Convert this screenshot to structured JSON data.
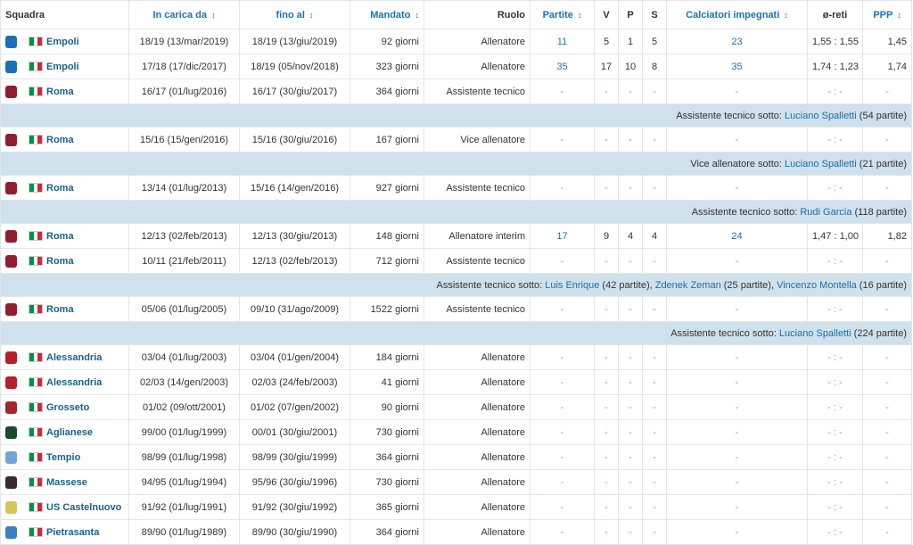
{
  "headers": {
    "team": "Squadra",
    "from": "In carica da",
    "to": "fino al",
    "tenure": "Mandato",
    "role": "Ruolo",
    "matches": "Partite",
    "w": "V",
    "l": "P",
    "d": "S",
    "players": "Calciatori impegnati",
    "goals": "ø-reti",
    "ppp": "PPP",
    "sort_arrow": "↕"
  },
  "rows": [
    {
      "type": "row",
      "team": "Empoli",
      "logo": "#1a6fb8",
      "from": "18/19 (13/mar/2019)",
      "to": "18/19 (13/giu/2019)",
      "tenure": "92 giorni",
      "role": "Allenatore",
      "matches": "11",
      "w": "5",
      "l": "1",
      "d": "5",
      "players": "23",
      "goals": "1,55 : 1,55",
      "ppp": "1,45"
    },
    {
      "type": "row",
      "team": "Empoli",
      "logo": "#1a6fb8",
      "from": "17/18 (17/dic/2017)",
      "to": "18/19 (05/nov/2018)",
      "tenure": "323 giorni",
      "role": "Allenatore",
      "matches": "35",
      "w": "17",
      "l": "10",
      "d": "8",
      "players": "35",
      "goals": "1,74 : 1,23",
      "ppp": "1,74"
    },
    {
      "type": "row",
      "team": "Roma",
      "logo": "#8e1f2f",
      "from": "16/17 (01/lug/2016)",
      "to": "16/17 (30/giu/2017)",
      "tenure": "364 giorni",
      "role": "Assistente tecnico",
      "matches": "-",
      "w": "-",
      "l": "-",
      "d": "-",
      "players": "-",
      "goals": "- : -",
      "ppp": "-"
    },
    {
      "type": "note",
      "prefix": "Assistente tecnico sotto: ",
      "links": [
        {
          "name": "Luciano Spalletti",
          "extra": " (54 partite)"
        }
      ]
    },
    {
      "type": "row",
      "team": "Roma",
      "logo": "#8e1f2f",
      "from": "15/16 (15/gen/2016)",
      "to": "15/16 (30/giu/2016)",
      "tenure": "167 giorni",
      "role": "Vice allenatore",
      "matches": "-",
      "w": "-",
      "l": "-",
      "d": "-",
      "players": "-",
      "goals": "- : -",
      "ppp": "-"
    },
    {
      "type": "note",
      "prefix": "Vice allenatore sotto: ",
      "links": [
        {
          "name": "Luciano Spalletti",
          "extra": " (21 partite)"
        }
      ]
    },
    {
      "type": "row",
      "team": "Roma",
      "logo": "#8e1f2f",
      "from": "13/14 (01/lug/2013)",
      "to": "15/16 (14/gen/2016)",
      "tenure": "927 giorni",
      "role": "Assistente tecnico",
      "matches": "-",
      "w": "-",
      "l": "-",
      "d": "-",
      "players": "-",
      "goals": "- : -",
      "ppp": "-"
    },
    {
      "type": "note",
      "prefix": "Assistente tecnico sotto: ",
      "links": [
        {
          "name": "Rudi Garcia",
          "extra": " (118 partite)"
        }
      ]
    },
    {
      "type": "row",
      "team": "Roma",
      "logo": "#8e1f2f",
      "from": "12/13 (02/feb/2013)",
      "to": "12/13 (30/giu/2013)",
      "tenure": "148 giorni",
      "role": "Allenatore interim",
      "matches": "17",
      "w": "9",
      "l": "4",
      "d": "4",
      "players": "24",
      "goals": "1,47 : 1,00",
      "ppp": "1,82"
    },
    {
      "type": "row",
      "team": "Roma",
      "logo": "#8e1f2f",
      "from": "10/11 (21/feb/2011)",
      "to": "12/13 (02/feb/2013)",
      "tenure": "712 giorni",
      "role": "Assistente tecnico",
      "matches": "-",
      "w": "-",
      "l": "-",
      "d": "-",
      "players": "-",
      "goals": "- : -",
      "ppp": "-"
    },
    {
      "type": "note",
      "prefix": "Assistente tecnico sotto: ",
      "links": [
        {
          "name": "Luis Enrique",
          "extra": " (42 partite), "
        },
        {
          "name": "Zdenek Zeman",
          "extra": " (25 partite), "
        },
        {
          "name": "Vincenzo Montella",
          "extra": " (16 partite)"
        }
      ]
    },
    {
      "type": "row",
      "team": "Roma",
      "logo": "#8e1f2f",
      "from": "05/06 (01/lug/2005)",
      "to": "09/10 (31/ago/2009)",
      "tenure": "1522 giorni",
      "role": "Assistente tecnico",
      "matches": "-",
      "w": "-",
      "l": "-",
      "d": "-",
      "players": "-",
      "goals": "- : -",
      "ppp": "-"
    },
    {
      "type": "note",
      "prefix": "Assistente tecnico sotto: ",
      "links": [
        {
          "name": "Luciano Spalletti",
          "extra": " (224 partite)"
        }
      ]
    },
    {
      "type": "row",
      "team": "Alessandria",
      "logo": "#b3202a",
      "from": "03/04 (01/lug/2003)",
      "to": "03/04 (01/gen/2004)",
      "tenure": "184 giorni",
      "role": "Allenatore",
      "matches": "-",
      "w": "-",
      "l": "-",
      "d": "-",
      "players": "-",
      "goals": "- : -",
      "ppp": "-"
    },
    {
      "type": "row",
      "team": "Alessandria",
      "logo": "#b3202a",
      "from": "02/03 (14/gen/2003)",
      "to": "02/03 (24/feb/2003)",
      "tenure": "41 giorni",
      "role": "Allenatore",
      "matches": "-",
      "w": "-",
      "l": "-",
      "d": "-",
      "players": "-",
      "goals": "- : -",
      "ppp": "-"
    },
    {
      "type": "row",
      "team": "Grosseto",
      "logo": "#a0282c",
      "from": "01/02 (09/ott/2001)",
      "to": "01/02 (07/gen/2002)",
      "tenure": "90 giorni",
      "role": "Allenatore",
      "matches": "-",
      "w": "-",
      "l": "-",
      "d": "-",
      "players": "-",
      "goals": "- : -",
      "ppp": "-"
    },
    {
      "type": "row",
      "team": "Aglianese",
      "logo": "#1b4a2e",
      "from": "99/00 (01/lug/1999)",
      "to": "00/01 (30/giu/2001)",
      "tenure": "730 giorni",
      "role": "Allenatore",
      "matches": "-",
      "w": "-",
      "l": "-",
      "d": "-",
      "players": "-",
      "goals": "- : -",
      "ppp": "-"
    },
    {
      "type": "row",
      "team": "Tempio",
      "logo": "#6fa6d6",
      "from": "98/99 (01/lug/1998)",
      "to": "98/99 (30/giu/1999)",
      "tenure": "364 giorni",
      "role": "Allenatore",
      "matches": "-",
      "w": "-",
      "l": "-",
      "d": "-",
      "players": "-",
      "goals": "- : -",
      "ppp": "-"
    },
    {
      "type": "row",
      "team": "Massese",
      "logo": "#3a2a2a",
      "from": "94/95 (01/lug/1994)",
      "to": "95/96 (30/giu/1996)",
      "tenure": "730 giorni",
      "role": "Allenatore",
      "matches": "-",
      "w": "-",
      "l": "-",
      "d": "-",
      "players": "-",
      "goals": "- : -",
      "ppp": "-"
    },
    {
      "type": "row",
      "team": "US Castelnuovo",
      "logo": "#d8c55a",
      "from": "91/92 (01/lug/1991)",
      "to": "91/92 (30/giu/1992)",
      "tenure": "365 giorni",
      "role": "Allenatore",
      "matches": "-",
      "w": "-",
      "l": "-",
      "d": "-",
      "players": "-",
      "goals": "- : -",
      "ppp": "-"
    },
    {
      "type": "row",
      "team": "Pietrasanta",
      "logo": "#3a7fc0",
      "from": "89/90 (01/lug/1989)",
      "to": "89/90 (30/giu/1990)",
      "tenure": "364 giorni",
      "role": "Allenatore",
      "matches": "-",
      "w": "-",
      "l": "-",
      "d": "-",
      "players": "-",
      "goals": "- : -",
      "ppp": "-"
    }
  ],
  "flag_colors": [
    "#009246",
    "#ffffff",
    "#ce2b37"
  ]
}
